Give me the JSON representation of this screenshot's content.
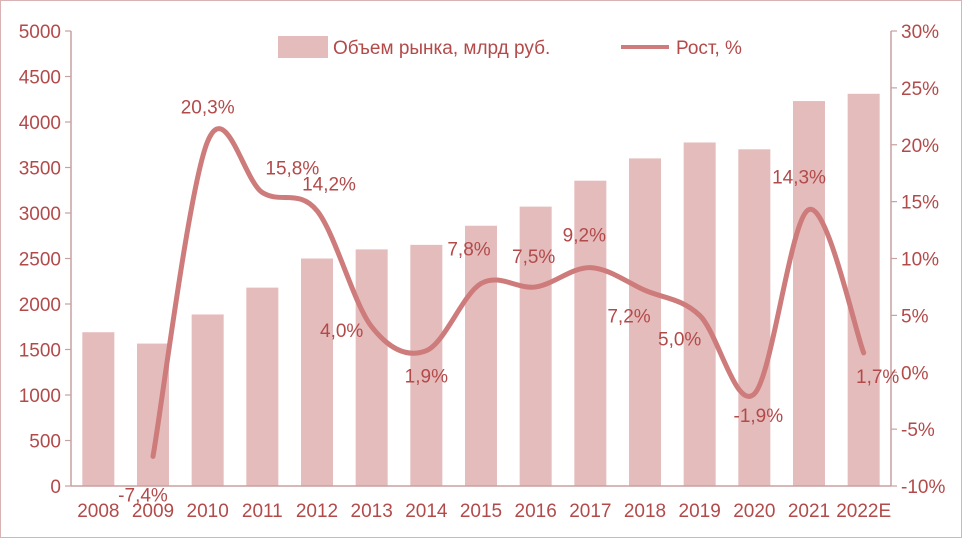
{
  "chart_data": {
    "type": "bar",
    "title": "",
    "categories": [
      "2008",
      "2009",
      "2010",
      "2011",
      "2012",
      "2013",
      "2014",
      "2015",
      "2016",
      "2017",
      "2018",
      "2019",
      "2020",
      "2021",
      "2022E"
    ],
    "series": [
      {
        "name": "Объем рынка, млрд руб.",
        "type": "bar",
        "axis": "left",
        "values": [
          1690,
          1565,
          1885,
          2180,
          2500,
          2600,
          2650,
          2860,
          3070,
          3355,
          3600,
          3775,
          3700,
          4230,
          4310
        ]
      },
      {
        "name": "Рост, %",
        "type": "line",
        "axis": "right",
        "values": [
          null,
          -7.4,
          20.3,
          15.8,
          14.2,
          4.0,
          1.9,
          7.8,
          7.5,
          9.2,
          7.2,
          5.0,
          -1.9,
          14.3,
          1.7
        ],
        "labels": [
          null,
          "-7,4%",
          "20,3%",
          "15,8%",
          "14,2%",
          "4,0%",
          "1,9%",
          "7,8%",
          "7,5%",
          "9,2%",
          "7,2%",
          "5,0%",
          "-1,9%",
          "14,3%",
          "1,7%"
        ]
      }
    ],
    "ylim": [
      0,
      5000
    ],
    "y_ticks": [
      "0",
      "500",
      "1000",
      "1500",
      "2000",
      "2500",
      "3000",
      "3500",
      "4000",
      "4500",
      "5000"
    ],
    "y2lim": [
      -10,
      30
    ],
    "y2_ticks": [
      "-10%",
      "-5%",
      "0%",
      "5%",
      "10%",
      "15%",
      "20%",
      "25%",
      "30%"
    ],
    "xlabel": "",
    "ylabel": "",
    "legend": "top",
    "grid": false,
    "colors": {
      "bar": "#e5bcbc",
      "line": "#cd7b7b",
      "text": "#b34a4a",
      "axis": "#c9a0a0"
    }
  }
}
